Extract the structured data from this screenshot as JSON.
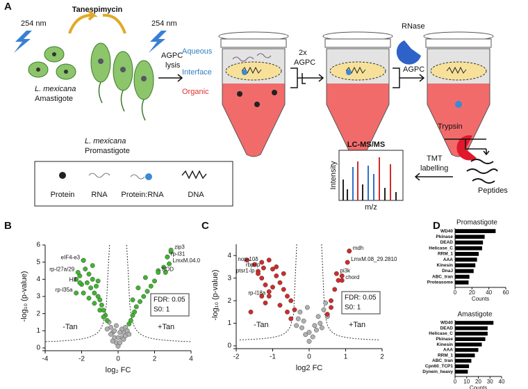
{
  "figure": {
    "panels": [
      "A",
      "B",
      "C",
      "D"
    ]
  },
  "schematic": {
    "drug": "Tanespimycin",
    "uv": [
      "254 nm",
      "254 nm"
    ],
    "amastigote": [
      "L. mexicana",
      "Amastigote"
    ],
    "promastigote": [
      "L. mexicana",
      "Promastigote"
    ],
    "lysis": [
      "AGPC",
      "lysis"
    ],
    "phases": [
      "Aqueous",
      "Interface",
      "Organic"
    ],
    "wash": [
      "2x",
      "AGPC"
    ],
    "rnase": "RNase",
    "agpc": "AGPC",
    "trypsin": "Trypsin",
    "ms": "LC-MS/MS",
    "tmt": [
      "TMT",
      "labelling"
    ],
    "intensity": "Intensity",
    "mz": "m/z",
    "peptides": "Peptides",
    "legend": [
      "Protein",
      "RNA",
      "Protein:RNA",
      "DNA"
    ]
  },
  "chart_data": [
    {
      "type": "scatter",
      "x_label": "log₂ FC",
      "y_label": "-log₁₀ (p-value)",
      "xlim": [
        -4,
        4
      ],
      "xticks": [
        -4,
        -2,
        0,
        2,
        4
      ],
      "ylim": [
        0,
        6
      ],
      "yticks": [
        0,
        1,
        2,
        3,
        4,
        5,
        6
      ],
      "series": [
        {
          "color": "#3fb52e",
          "x": [
            -2.3,
            -2.1,
            -1.9,
            -1.8,
            -1.7,
            -1.6,
            -1.5,
            -1.4,
            -1.3,
            -1.2,
            -1.1,
            -1.0,
            -0.9,
            -0.8,
            -0.7,
            -0.6,
            -1.9,
            -1.6,
            -1.3,
            -1.0,
            -0.8,
            -2.0,
            -1.4,
            -1.1,
            2.9,
            2.7,
            2.5,
            2.2,
            2.0,
            1.8,
            1.6,
            1.4,
            1.2,
            1.0,
            0.9,
            0.8,
            0.7,
            0.6,
            1.5,
            1.1,
            0.8,
            2.6,
            1.9
          ],
          "values": [
            4.0,
            4.2,
            5.1,
            4.6,
            3.8,
            4.3,
            3.5,
            4.0,
            3.2,
            3.6,
            3.0,
            2.8,
            2.5,
            2.2,
            1.9,
            1.6,
            3.2,
            2.9,
            2.6,
            2.2,
            1.8,
            3.7,
            4.8,
            3.9,
            5.6,
            5.3,
            4.7,
            4.5,
            3.9,
            3.6,
            3.3,
            3.0,
            2.7,
            2.4,
            2.1,
            1.9,
            1.6,
            1.4,
            4.1,
            3.5,
            2.8,
            4.4,
            2.5
          ]
        },
        {
          "color": "#b0b0b0",
          "x": [
            -0.5,
            -0.4,
            -0.3,
            -0.2,
            -0.1,
            0,
            0.1,
            0.2,
            0.3,
            0.4,
            0.5,
            -0.3,
            0.3,
            -0.2,
            0.2,
            0,
            -0.4,
            0.4,
            -0.1,
            0.1,
            0.6,
            -0.6
          ],
          "values": [
            1.5,
            1.2,
            0.9,
            0.6,
            0.3,
            0.1,
            0.3,
            0.6,
            0.9,
            1.2,
            1.0,
            0.4,
            0.5,
            1.0,
            1.1,
            0.6,
            0.8,
            0.7,
            1.3,
            0.9,
            0.8,
            1.1
          ]
        }
      ],
      "genes": {
        "labels": [
          "eIF4-e3",
          "rp-l27a/29",
          "H3",
          "rp-l35a",
          "zip3",
          "rp-l31",
          "LmxM.04.0",
          "SOD"
        ],
        "x": [
          -1.9,
          -2.2,
          -2.1,
          -2.3,
          2.9,
          2.7,
          2.8,
          2.2
        ],
        "values": [
          5.1,
          4.4,
          3.8,
          3.2,
          5.7,
          5.3,
          4.9,
          4.4
        ]
      },
      "stats": [
        "FDR: 0.05",
        "S0: 1"
      ],
      "sides": [
        "-Tan",
        "+Tan"
      ]
    },
    {
      "type": "scatter",
      "x_label": "log2 FC",
      "y_label": "-log₁₀ (p-value)",
      "xlim": [
        -2,
        2
      ],
      "xticks": [
        -2,
        -1,
        0,
        1,
        2
      ],
      "ylim": [
        0,
        4.5
      ],
      "yticks": [
        0,
        1,
        2,
        3,
        4
      ],
      "series": [
        {
          "color": "#d12a2a",
          "x": [
            -1.5,
            -1.4,
            -1.3,
            -1.2,
            -1.1,
            -1.0,
            -0.9,
            -0.8,
            -0.7,
            -0.6,
            -0.5,
            -1.3,
            -1.1,
            -0.9,
            -0.8,
            -0.7,
            -0.6,
            -1.0,
            -1.2,
            -1.6,
            -1.7,
            0.6,
            0.7,
            0.8,
            0.9,
            1.1,
            0.5,
            0.6,
            -0.4,
            -0.5
          ],
          "values": [
            3.6,
            3.3,
            3.0,
            2.7,
            3.8,
            3.4,
            3.1,
            2.8,
            2.5,
            2.2,
            2.0,
            2.2,
            2.4,
            3.5,
            1.8,
            3.2,
            1.5,
            2.6,
            1.9,
            1.5,
            3.8,
            2.0,
            2.5,
            2.9,
            3.1,
            4.2,
            1.4,
            1.7,
            1.6,
            1.2
          ]
        },
        {
          "color": "#b0b0b0",
          "x": [
            -0.3,
            -0.2,
            -0.1,
            0,
            0.1,
            0.2,
            0.3,
            -0.25,
            0.25,
            -0.15,
            0.15,
            0,
            -0.35,
            0.35,
            0.4,
            0.45,
            0.5,
            -0.05
          ],
          "values": [
            1.2,
            0.8,
            0.5,
            0.2,
            0.4,
            0.7,
            1.0,
            1.5,
            1.3,
            1.1,
            0.9,
            0.6,
            0.9,
            0.8,
            1.6,
            1.9,
            1.3,
            1.7
          ]
        }
      ],
      "genes": {
        "labels": [
          "nop-10δ",
          "rbp-lp",
          "ptsr1-lp",
          "rp-l18a",
          "mdh",
          "pi3k",
          "LmxM.08_29.2810",
          "chord"
        ],
        "x": [
          -1.3,
          -1.25,
          -1.4,
          -1.1,
          1.1,
          0.75,
          1.05,
          0.9
        ],
        "values": [
          3.7,
          3.45,
          3.2,
          2.2,
          4.2,
          3.2,
          3.7,
          2.9
        ]
      },
      "stats": [
        "FDR: 0.05",
        "S0: 1"
      ],
      "sides": [
        "-Tan",
        "+Tan"
      ]
    },
    {
      "type": "hbar",
      "title": "Promastigote",
      "x_label": "Counts",
      "color": "#000000",
      "categories": [
        "WD40",
        "Pkinase",
        "DEAD",
        "Helicase_C",
        "RRM_1",
        "AAA",
        "Kinesin",
        "DnaJ",
        "ABC_tran",
        "Proteasome"
      ],
      "values": [
        48,
        35,
        33,
        32,
        28,
        26,
        24,
        22,
        17,
        16
      ],
      "xlim": [
        0,
        60
      ],
      "xticks": [
        0,
        20,
        40,
        60
      ]
    },
    {
      "type": "hbar",
      "title": "Amastigote",
      "x_label": "Counts",
      "color": "#000000",
      "categories": [
        "WD40",
        "DEAD",
        "Helicase_C",
        "Pkinase",
        "Kinesin",
        "AAA",
        "RRM_1",
        "ABC_tran",
        "Cpn60_TCP1",
        "Dynein_heavy"
      ],
      "values": [
        33,
        28,
        28,
        26,
        23,
        20,
        17,
        14,
        12,
        11
      ],
      "xlim": [
        0,
        40
      ],
      "xticks": [
        0,
        10,
        20,
        30,
        40
      ]
    }
  ]
}
